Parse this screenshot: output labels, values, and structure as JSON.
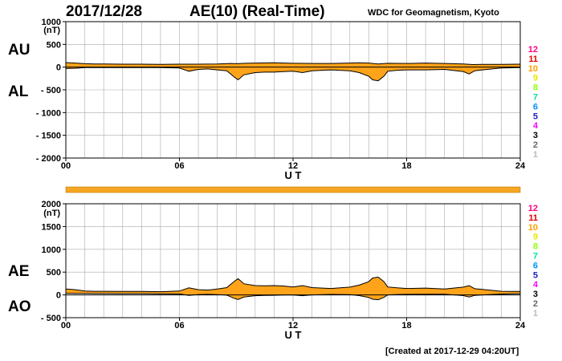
{
  "header": {
    "date": "2017/12/28",
    "title": "AE(10) (Real-Time)",
    "org": "WDC for Geomagnetism, Kyoto"
  },
  "footer": {
    "created": "[Created at 2017-12-29 04:20UT]"
  },
  "colors": {
    "fill": "#ffa31a",
    "line": "#000000",
    "grid": "#aaaaaa",
    "bar": "#f5a623"
  },
  "levels": {
    "labels": [
      "12",
      "11",
      "10",
      "9",
      "8",
      "7",
      "6",
      "5",
      "4",
      "3",
      "2",
      "1"
    ],
    "colors": [
      "#ff0080",
      "#e00000",
      "#ffa000",
      "#e8e800",
      "#90ff00",
      "#00e0a0",
      "#0090ff",
      "#2020c0",
      "#ff00ff",
      "#000000",
      "#666666",
      "#bbbbbb"
    ]
  },
  "chart_data": [
    {
      "type": "area",
      "panel": "AU / AL",
      "upper_label": "AU",
      "lower_label": "AL",
      "unit": "(nT)",
      "xlabel": "U T",
      "xlim": [
        0,
        24
      ],
      "xticks": [
        "00",
        "06",
        "12",
        "18",
        "24"
      ],
      "ylim": [
        -2000,
        1000
      ],
      "yticks": [
        "1000",
        "500",
        "0",
        "- 500",
        "- 1000",
        "- 1500",
        "- 2000"
      ],
      "series": [
        {
          "name": "AU",
          "x": [
            0,
            0.5,
            1,
            1.5,
            2,
            3,
            4,
            5,
            6,
            7,
            8,
            8.7,
            9,
            9.5,
            10,
            11,
            12,
            13,
            14,
            15,
            15.5,
            16,
            16.5,
            17,
            18,
            19,
            20,
            21,
            21.5,
            22,
            23,
            24
          ],
          "y": [
            100,
            90,
            75,
            70,
            70,
            65,
            65,
            60,
            65,
            65,
            70,
            80,
            75,
            85,
            90,
            95,
            85,
            80,
            80,
            90,
            95,
            90,
            70,
            85,
            80,
            90,
            80,
            70,
            55,
            60,
            60,
            65
          ]
        },
        {
          "name": "AL",
          "x": [
            0,
            0.5,
            1,
            1.5,
            2,
            3,
            4,
            5,
            6,
            6.5,
            7,
            7.5,
            8,
            8.5,
            8.9,
            9.1,
            9.4,
            10,
            10.5,
            11,
            11.5,
            12,
            12.5,
            13,
            14,
            15,
            15.5,
            16,
            16.2,
            16.5,
            16.8,
            17,
            17.5,
            18,
            19,
            20,
            21,
            21.3,
            21.6,
            22,
            23,
            24
          ],
          "y": [
            -30,
            -25,
            -10,
            -10,
            -10,
            -10,
            -10,
            -10,
            -20,
            -90,
            -50,
            -40,
            -60,
            -80,
            -220,
            -280,
            -170,
            -120,
            -110,
            -110,
            -100,
            -90,
            -120,
            -80,
            -60,
            -80,
            -120,
            -200,
            -280,
            -300,
            -200,
            -90,
            -70,
            -60,
            -60,
            -50,
            -100,
            -150,
            -80,
            -60,
            -20,
            -10
          ]
        }
      ]
    },
    {
      "type": "area",
      "panel": "AE / AO",
      "upper_label": "AE",
      "lower_label": "AO",
      "unit": "(nT)",
      "xlabel": "U T",
      "xlim": [
        0,
        24
      ],
      "xticks": [
        "00",
        "06",
        "12",
        "18",
        "24"
      ],
      "ylim": [
        -500,
        2000
      ],
      "yticks": [
        "2000",
        "1500",
        "1000",
        "500",
        "0",
        "- 500"
      ],
      "series": [
        {
          "name": "AE",
          "x": [
            0,
            0.5,
            1,
            1.5,
            2,
            3,
            4,
            5,
            6,
            6.5,
            7,
            7.5,
            8,
            8.5,
            8.9,
            9.1,
            9.4,
            10,
            10.5,
            11,
            11.5,
            12,
            12.5,
            13,
            14,
            15,
            15.5,
            16,
            16.2,
            16.5,
            16.8,
            17,
            17.5,
            18,
            19,
            20,
            21,
            21.3,
            21.6,
            22,
            23,
            24
          ],
          "y": [
            130,
            115,
            85,
            80,
            80,
            75,
            75,
            70,
            85,
            155,
            115,
            105,
            130,
            160,
            300,
            355,
            245,
            205,
            200,
            205,
            195,
            175,
            205,
            160,
            140,
            170,
            215,
            290,
            370,
            390,
            290,
            175,
            155,
            140,
            150,
            130,
            170,
            205,
            135,
            120,
            80,
            75
          ]
        },
        {
          "name": "AO",
          "x": [
            0,
            0.5,
            1,
            1.5,
            2,
            3,
            4,
            5,
            6,
            6.5,
            7,
            7.5,
            8,
            8.5,
            8.9,
            9.1,
            9.4,
            10,
            10.5,
            11,
            11.5,
            12,
            12.5,
            13,
            14,
            15,
            15.5,
            16,
            16.2,
            16.5,
            16.8,
            17,
            17.5,
            18,
            19,
            20,
            21,
            21.3,
            21.6,
            22,
            23,
            24
          ],
          "y": [
            35,
            33,
            32,
            30,
            30,
            28,
            28,
            25,
            22,
            -10,
            8,
            12,
            5,
            -5,
            -75,
            -100,
            -48,
            -17,
            -12,
            -8,
            -3,
            -3,
            -18,
            0,
            10,
            5,
            -15,
            -55,
            -95,
            -105,
            -55,
            0,
            8,
            12,
            15,
            15,
            -15,
            -45,
            -10,
            0,
            20,
            28
          ]
        }
      ]
    }
  ]
}
